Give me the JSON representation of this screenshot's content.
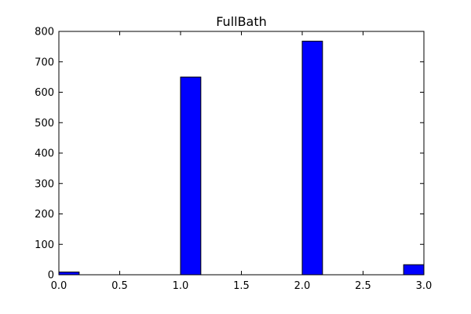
{
  "chart_data": {
    "type": "histogram",
    "title": "FullBath",
    "xlabel": "",
    "ylabel": "",
    "xlim": [
      0.0,
      3.0
    ],
    "ylim": [
      0,
      800
    ],
    "xticks": [
      0.0,
      0.5,
      1.0,
      1.5,
      2.0,
      2.5,
      3.0
    ],
    "xtick_labels": [
      "0.0",
      "0.5",
      "1.0",
      "1.5",
      "2.0",
      "2.5",
      "3.0"
    ],
    "yticks": [
      0,
      100,
      200,
      300,
      400,
      500,
      600,
      700,
      800
    ],
    "ytick_labels": [
      "0",
      "100",
      "200",
      "300",
      "400",
      "500",
      "600",
      "700",
      "800"
    ],
    "bin_width": 0.1667,
    "bins": [
      {
        "x": 0.0,
        "value": 9
      },
      {
        "x": 1.0,
        "value": 650
      },
      {
        "x": 2.0,
        "value": 768
      },
      {
        "x": 2.8333,
        "value": 33
      }
    ],
    "bar_color": "#0000ff",
    "edge_color": "#000000",
    "grid": false
  }
}
